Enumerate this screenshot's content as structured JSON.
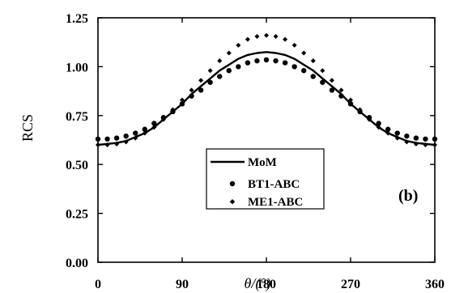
{
  "chart_data": {
    "type": "line",
    "panel_label": "(b)",
    "xlabel": "θ/(°)",
    "ylabel": "RCS",
    "xlim": [
      0,
      360
    ],
    "ylim": [
      0,
      1.25
    ],
    "x_ticks": [
      "0",
      "90",
      "180",
      "270",
      "360"
    ],
    "y_ticks": [
      "0.00",
      "0.25",
      "0.50",
      "0.75",
      "1.00",
      "1.25"
    ],
    "grid": false,
    "legend_position": "bottom-center",
    "series": [
      {
        "name": "MoM",
        "style": "line",
        "color": "#000000",
        "x": [
          0,
          10,
          20,
          30,
          40,
          50,
          60,
          70,
          80,
          90,
          100,
          110,
          120,
          130,
          140,
          150,
          160,
          170,
          180,
          190,
          200,
          210,
          220,
          230,
          240,
          250,
          260,
          270,
          280,
          290,
          300,
          310,
          320,
          330,
          340,
          350,
          360
        ],
        "y": [
          0.6,
          0.605,
          0.61,
          0.62,
          0.64,
          0.66,
          0.69,
          0.73,
          0.77,
          0.81,
          0.86,
          0.9,
          0.94,
          0.98,
          1.01,
          1.04,
          1.06,
          1.07,
          1.075,
          1.07,
          1.06,
          1.04,
          1.01,
          0.98,
          0.94,
          0.9,
          0.86,
          0.81,
          0.77,
          0.73,
          0.69,
          0.66,
          0.64,
          0.62,
          0.61,
          0.605,
          0.6
        ]
      },
      {
        "name": "BT1-ABC",
        "style": "marker-dot",
        "color": "#000000",
        "x": [
          0,
          10,
          20,
          30,
          40,
          50,
          60,
          70,
          80,
          90,
          100,
          110,
          120,
          130,
          140,
          150,
          160,
          170,
          180,
          190,
          200,
          210,
          220,
          230,
          240,
          250,
          260,
          270,
          280,
          290,
          300,
          310,
          320,
          330,
          340,
          350,
          360
        ],
        "y": [
          0.63,
          0.63,
          0.635,
          0.645,
          0.66,
          0.68,
          0.71,
          0.74,
          0.77,
          0.81,
          0.85,
          0.88,
          0.92,
          0.95,
          0.98,
          1.0,
          1.02,
          1.03,
          1.035,
          1.03,
          1.02,
          1.0,
          0.98,
          0.95,
          0.92,
          0.88,
          0.85,
          0.81,
          0.77,
          0.74,
          0.71,
          0.68,
          0.66,
          0.645,
          0.635,
          0.63,
          0.63
        ]
      },
      {
        "name": "ME1-ABC",
        "style": "marker-diamond",
        "color": "#000000",
        "x": [
          0,
          10,
          20,
          30,
          40,
          50,
          60,
          70,
          80,
          90,
          100,
          110,
          120,
          130,
          140,
          150,
          160,
          170,
          180,
          190,
          200,
          210,
          220,
          230,
          240,
          250,
          260,
          270,
          280,
          290,
          300,
          310,
          320,
          330,
          340,
          350,
          360
        ],
        "y": [
          0.6,
          0.6,
          0.605,
          0.615,
          0.635,
          0.66,
          0.69,
          0.73,
          0.78,
          0.83,
          0.88,
          0.93,
          0.98,
          1.03,
          1.07,
          1.11,
          1.14,
          1.155,
          1.16,
          1.155,
          1.14,
          1.11,
          1.07,
          1.03,
          0.98,
          0.93,
          0.88,
          0.83,
          0.78,
          0.73,
          0.69,
          0.66,
          0.635,
          0.615,
          0.605,
          0.6,
          0.6
        ]
      }
    ]
  }
}
